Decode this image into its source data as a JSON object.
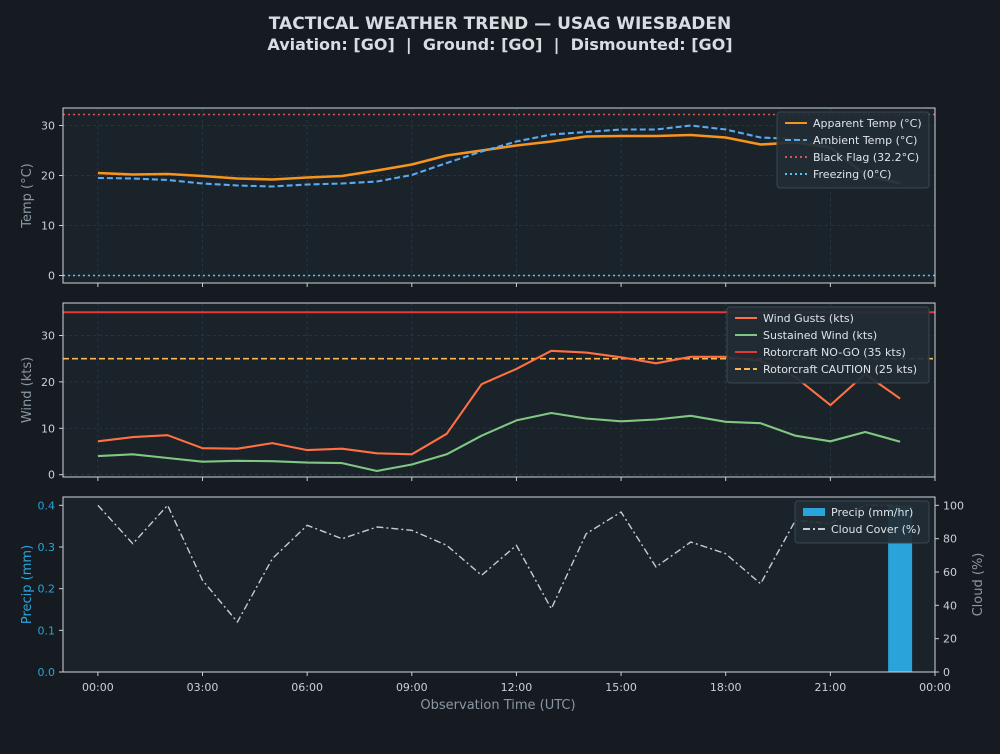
{
  "title": "TACTICAL WEATHER TREND — USAG WIESBADEN",
  "subtitle": "Aviation: [GO]  |  Ground: [GO]  |  Dismounted: [GO]",
  "xlabel": "Observation Time (UTC)",
  "x_ticks": [
    "00:00",
    "03:00",
    "06:00",
    "09:00",
    "12:00",
    "15:00",
    "18:00",
    "21:00",
    "00:00"
  ],
  "colors": {
    "background": "#151b21",
    "panel": "#1a222a",
    "grid": "#2c3a46",
    "apparent": "#f7941d",
    "ambient": "#5aaaf0",
    "black_flag": "#d9534f",
    "freezing": "#4fc3f7",
    "gusts": "#ff7043",
    "sustained": "#81c784",
    "nogo": "#e53935",
    "caution": "#ffb74d",
    "precip": "#29a3d9",
    "cloud": "#c8ccd0"
  },
  "chart_data": [
    {
      "type": "line",
      "panel": "temperature",
      "ylabel": "Temp (°C)",
      "ylim": [
        -1.5,
        33.5
      ],
      "y_ticks": [
        0,
        10,
        20,
        30
      ],
      "x_hours": [
        0,
        1,
        2,
        3,
        4,
        5,
        6,
        7,
        8,
        9,
        10,
        11,
        12,
        13,
        14,
        15,
        16,
        17,
        18,
        19,
        20,
        21,
        22,
        23
      ],
      "grid": true,
      "legend_position": "top-right",
      "series": [
        {
          "name": "Apparent Temp (°C)",
          "style": "solid",
          "values": [
            20.5,
            20.2,
            20.3,
            19.9,
            19.4,
            19.2,
            19.6,
            19.9,
            21.0,
            22.2,
            24.0,
            25.0,
            26.0,
            26.8,
            27.8,
            27.9,
            27.9,
            28.1,
            27.6,
            26.2,
            26.6,
            25.6,
            20.2,
            18.4
          ]
        },
        {
          "name": "Ambient Temp (°C)",
          "style": "dashed",
          "values": [
            19.5,
            19.4,
            19.1,
            18.4,
            18.0,
            17.8,
            18.2,
            18.4,
            18.8,
            20.1,
            22.5,
            24.8,
            26.8,
            28.2,
            28.7,
            29.2,
            29.2,
            30.0,
            29.2,
            27.6,
            27.3,
            25.6,
            20.0,
            18.4
          ]
        }
      ],
      "thresholds": [
        {
          "name": "Black Flag (32.2°C)",
          "value": 32.2,
          "style": "dotted"
        },
        {
          "name": "Freezing (0°C)",
          "value": 0,
          "style": "dotted"
        }
      ]
    },
    {
      "type": "line",
      "panel": "wind",
      "ylabel": "Wind (kts)",
      "ylim": [
        -0.5,
        37
      ],
      "y_ticks": [
        0,
        10,
        20,
        30
      ],
      "x_hours": [
        0,
        1,
        2,
        3,
        4,
        5,
        6,
        7,
        8,
        9,
        10,
        11,
        12,
        13,
        14,
        15,
        16,
        17,
        18,
        19,
        20,
        21,
        22,
        23
      ],
      "grid": true,
      "legend_position": "top-right",
      "series": [
        {
          "name": "Wind Gusts (kts)",
          "style": "solid",
          "values": [
            7.2,
            8.1,
            8.5,
            5.7,
            5.6,
            6.8,
            5.3,
            5.6,
            4.6,
            4.4,
            8.8,
            19.5,
            22.8,
            26.7,
            26.3,
            25.3,
            24.0,
            25.4,
            25.4,
            24.5,
            21.0,
            15.0,
            21.7,
            16.4
          ]
        },
        {
          "name": "Sustained Wind (kts)",
          "style": "solid",
          "values": [
            4.0,
            4.4,
            3.6,
            2.8,
            3.0,
            2.9,
            2.6,
            2.5,
            0.8,
            2.2,
            4.4,
            8.4,
            11.7,
            13.3,
            12.1,
            11.5,
            11.9,
            12.7,
            11.4,
            11.1,
            8.4,
            7.2,
            9.2,
            7.1
          ]
        }
      ],
      "thresholds": [
        {
          "name": "Rotorcraft NO-GO (35 kts)",
          "value": 35,
          "style": "solid"
        },
        {
          "name": "Rotorcraft CAUTION (25 kts)",
          "value": 25,
          "style": "dashed"
        }
      ]
    },
    {
      "type": "bar+line",
      "panel": "precip_cloud",
      "ylabel": "Precip (mm)",
      "ylim": [
        0,
        0.42
      ],
      "y_ticks": [
        0.0,
        0.1,
        0.2,
        0.3,
        0.4
      ],
      "ylabel_right": "Cloud (%)",
      "ylim_right": [
        0,
        105
      ],
      "y_ticks_right": [
        0,
        20,
        40,
        60,
        80,
        100
      ],
      "x_hours": [
        0,
        1,
        2,
        3,
        4,
        5,
        6,
        7,
        8,
        9,
        10,
        11,
        12,
        13,
        14,
        15,
        16,
        17,
        18,
        19,
        20,
        21,
        22,
        23
      ],
      "legend_position": "top-right",
      "series": [
        {
          "name": "Precip (mm/hr)",
          "type": "bar",
          "axis": "left",
          "values": [
            0,
            0,
            0,
            0,
            0,
            0,
            0,
            0,
            0,
            0,
            0,
            0,
            0,
            0,
            0,
            0,
            0,
            0,
            0,
            0,
            0,
            0,
            0,
            0.4
          ]
        },
        {
          "name": "Cloud Cover (%)",
          "type": "line",
          "style": "dashdot",
          "axis": "right",
          "values": [
            100,
            77,
            100,
            55,
            30,
            68,
            88,
            80,
            87,
            85,
            76,
            58,
            76,
            38,
            83,
            96,
            63,
            78,
            71,
            53,
            91,
            89,
            100,
            100
          ]
        }
      ]
    }
  ]
}
